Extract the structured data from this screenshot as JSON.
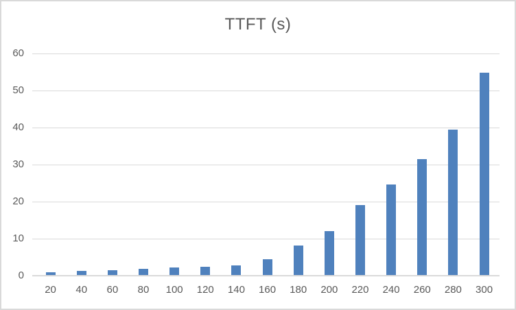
{
  "window": {
    "background": "#ffffff",
    "border_color": "#d9d9d9"
  },
  "chart_data": {
    "type": "bar",
    "title": "TTFT (s)",
    "categories": [
      "20",
      "40",
      "60",
      "80",
      "100",
      "120",
      "140",
      "160",
      "180",
      "200",
      "220",
      "240",
      "260",
      "280",
      "300"
    ],
    "values": [
      0.9,
      1.3,
      1.5,
      1.9,
      2.2,
      2.5,
      2.7,
      4.5,
      8.2,
      12.1,
      19.0,
      24.7,
      31.5,
      39.4,
      54.8
    ],
    "xlabel": "",
    "ylabel": "",
    "ylim": [
      0,
      60
    ],
    "yticks": [
      0,
      10,
      20,
      30,
      40,
      50,
      60
    ],
    "grid": true,
    "legend": false,
    "styles": {
      "bar_color": "#4f81bd",
      "gridline_color": "#d9d9d9",
      "axis_line_color": "#d9d9d9",
      "text_color": "#595959",
      "title_color": "#595959"
    }
  }
}
